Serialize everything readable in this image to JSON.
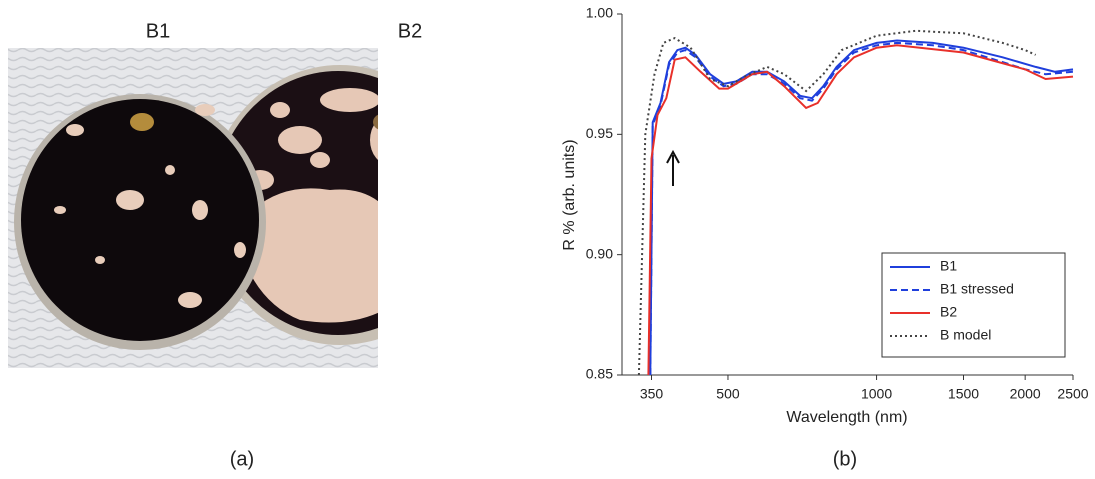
{
  "panels": {
    "a": {
      "label": "(a)",
      "photo_labels": [
        "B1",
        "B2"
      ]
    },
    "b": {
      "label": "(b)"
    }
  },
  "chart_data": {
    "type": "line",
    "xlabel": "Wavelength (nm)",
    "ylabel": "R % (arb. units)",
    "xscale": "log",
    "xlim": [
      305,
      2500
    ],
    "xticks": [
      350,
      500,
      1000,
      1500,
      2000,
      2500
    ],
    "ylim": [
      0.85,
      1.0
    ],
    "yticks": [
      0.85,
      {
        "value": 0.9,
        "label": "0.90"
      },
      0.95,
      {
        "value": 1.0,
        "label": "1.00"
      }
    ],
    "legend": "lower right",
    "series": [
      {
        "name": "B1",
        "color": "#1f3fdc",
        "style": "solid",
        "x": [
          348,
          352,
          365,
          380,
          395,
          410,
          430,
          460,
          490,
          520,
          560,
          600,
          650,
          700,
          740,
          780,
          830,
          900,
          1000,
          1100,
          1300,
          1500,
          1800,
          2100,
          2300,
          2500
        ],
        "values": [
          0.85,
          0.955,
          0.963,
          0.98,
          0.985,
          0.986,
          0.983,
          0.975,
          0.971,
          0.972,
          0.976,
          0.976,
          0.972,
          0.966,
          0.965,
          0.97,
          0.978,
          0.985,
          0.988,
          0.989,
          0.988,
          0.986,
          0.982,
          0.978,
          0.976,
          0.977
        ]
      },
      {
        "name": "B1 stressed",
        "color": "#1f3fdc",
        "style": "dashed",
        "x": [
          348,
          352,
          365,
          380,
          395,
          410,
          430,
          460,
          490,
          520,
          560,
          600,
          650,
          700,
          740,
          780,
          830,
          900,
          1000,
          1100,
          1300,
          1500,
          1800,
          2000,
          2200,
          2500
        ],
        "values": [
          0.85,
          0.954,
          0.962,
          0.979,
          0.984,
          0.985,
          0.982,
          0.974,
          0.97,
          0.971,
          0.975,
          0.975,
          0.971,
          0.965,
          0.964,
          0.969,
          0.977,
          0.984,
          0.987,
          0.988,
          0.987,
          0.985,
          0.98,
          0.977,
          0.975,
          0.976
        ]
      },
      {
        "name": "B2",
        "color": "#e8302a",
        "style": "solid",
        "x": [
          345,
          350,
          360,
          375,
          390,
          410,
          440,
          480,
          500,
          560,
          600,
          650,
          720,
          760,
          830,
          900,
          1000,
          1100,
          1500,
          2000,
          2200,
          2500
        ],
        "values": [
          0.85,
          0.94,
          0.958,
          0.965,
          0.981,
          0.982,
          0.976,
          0.969,
          0.969,
          0.975,
          0.976,
          0.97,
          0.961,
          0.963,
          0.975,
          0.982,
          0.986,
          0.987,
          0.984,
          0.977,
          0.973,
          0.974
        ]
      },
      {
        "name": "B model",
        "color": "#444444",
        "style": "dotted",
        "x": [
          330,
          340,
          355,
          370,
          390,
          420,
          460,
          500,
          540,
          600,
          650,
          720,
          780,
          850,
          1000,
          1200,
          1500,
          1800,
          2000,
          2100
        ],
        "values": [
          0.85,
          0.95,
          0.975,
          0.988,
          0.99,
          0.986,
          0.973,
          0.97,
          0.974,
          0.978,
          0.975,
          0.968,
          0.975,
          0.985,
          0.991,
          0.993,
          0.992,
          0.988,
          0.985,
          0.983
        ]
      }
    ]
  }
}
